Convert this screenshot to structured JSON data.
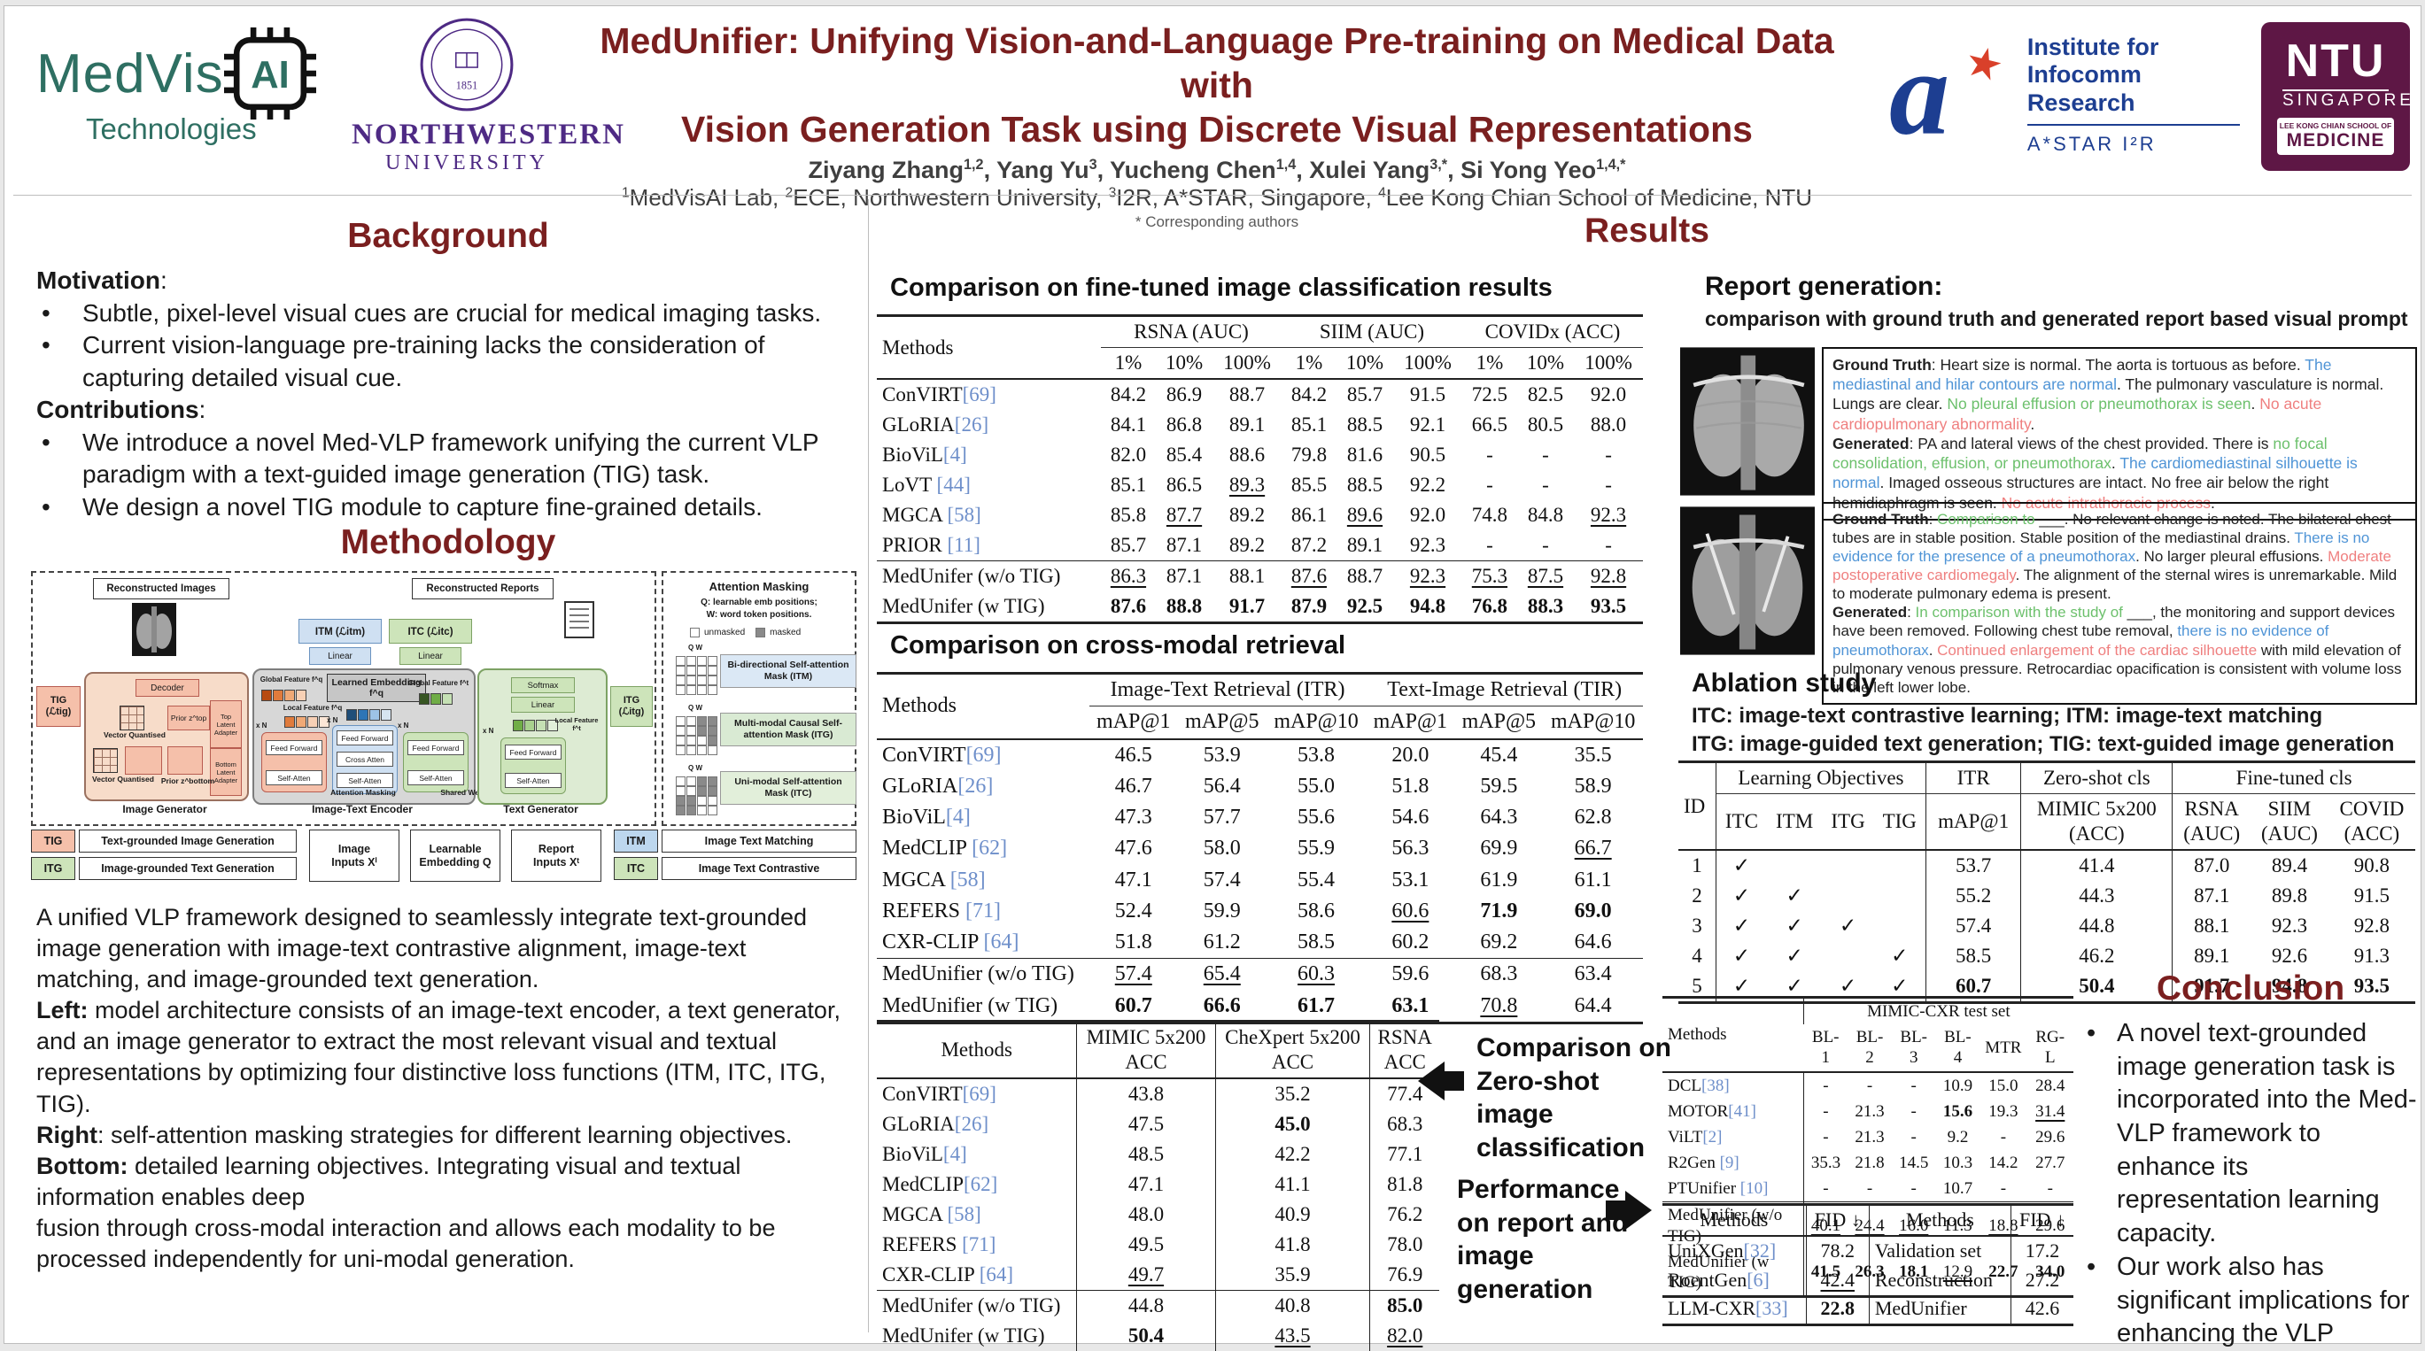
{
  "colors": {
    "blue": "#4f94d6",
    "green": "#6cc06c",
    "red": "#ef7f7f",
    "maroon": "#7a1f1f",
    "ref": "#6e8fca"
  },
  "header": {
    "title1": "MedUnifier: Unifying Vision-and-Language Pre-training on Medical Data with",
    "title2": "Vision Generation Task using Discrete Visual Representations",
    "authors": [
      {
        "t": "Ziyang Zhang"
      },
      {
        "sup": "1,2"
      },
      {
        "t": ", Yang Yu"
      },
      {
        "sup": "3"
      },
      {
        "t": ", Yucheng Chen"
      },
      {
        "sup": "1,4"
      },
      {
        "t": ", Xulei Yang"
      },
      {
        "sup": "3,*"
      },
      {
        "t": ", Si Yong Yeo"
      },
      {
        "sup": "1,4,*"
      }
    ],
    "affiliations": [
      {
        "sup": "1"
      },
      {
        "t": "MedVisAI Lab, "
      },
      {
        "sup": "2"
      },
      {
        "t": "ECE, Northwestern University, "
      },
      {
        "sup": "3"
      },
      {
        "t": "I2R, A*STAR, Singapore, "
      },
      {
        "sup": "4"
      },
      {
        "t": "Lee Kong Chian School of Medicine, NTU"
      }
    ],
    "corresponding": "* Corresponding authors",
    "logos": {
      "medvis": {
        "word": "MedVis",
        "chip": "AI",
        "tech": "Technologies"
      },
      "nw": {
        "year": "1851",
        "l1": "NORTHWESTERN",
        "l2": "UNIVERSITY"
      },
      "astar": {
        "a": "a",
        "star": "★",
        "l1": "Institute for",
        "l2": "Infocomm Research",
        "sub": "A*STAR I²R"
      },
      "ntu": {
        "l1": "NTU",
        "l2": "SINGAPORE",
        "l3": "LEE KONG CHIAN SCHOOL OF",
        "l4": "MEDICINE"
      }
    }
  },
  "background": {
    "heading": "Background",
    "motivation": [
      {
        "t": "Motivation",
        "b": 1
      },
      {
        "t": ":"
      }
    ],
    "m_items": [
      "Subtle, pixel-level visual cues are crucial for medical imaging tasks.",
      "Current vision-language pre-training lacks the consideration of capturing detailed visual cue."
    ],
    "contributions": [
      {
        "t": "Contributions",
        "b": 1
      },
      {
        "t": ":"
      }
    ],
    "c_items": [
      "We introduce a novel Med-VLP framework unifying the current VLP paradigm with a text-guided image generation (TIG) task.",
      "We design a novel TIG module to capture fine-grained details."
    ]
  },
  "methodology": {
    "heading": "Methodology",
    "diagram": {
      "rec_images": "Reconstructed Images",
      "rec_reports": "Reconstructed Reports",
      "itm": "ITM (ℒitm)",
      "itc": "ITC (ℒitc)",
      "tig": "TIG\n(ℒtig)",
      "itg": "ITG\n(ℒitg)",
      "linear": "Linear",
      "softmax": "Softmax",
      "decoder": "Decoder",
      "ff": "Feed Forward",
      "sa": "Self-Atten",
      "ca": "Cross Atten",
      "learned_emb": "Learned Embedding f^q",
      "glob_q": "Global Feature f^q",
      "loc_q": "Local Feature f^q",
      "glob_t": "Global Feature f^t",
      "loc_t": "Local Feature f^t",
      "img_gen": "Image Generator",
      "ite": "Image-Text Encoder",
      "txt_gen": "Text Generator",
      "attn_mask": "Attention Masking",
      "shared_w": "Shared Weight",
      "vq": "Vector Quantised",
      "prior_top": "Prior z^top",
      "prior_bottom": "Prior z^bottom",
      "top_adapter": "Top Latent Adapter",
      "bottom_adapter": "Bottom Latent Adapter",
      "xn": "x N",
      "panel": {
        "title": "Attention Masking",
        "q_note": "Q: learnable emb positions;",
        "w_note": "W: word token positions.",
        "unmasked": "unmasked",
        "masked": "masked",
        "qw": "Q   W",
        "itm_label": "Bi-directional Self-attention Mask (ITM)",
        "itg_label": "Multi-modal Causal Self-attention Mask (ITG)",
        "itc_label": "Uni-modal Self-attention Mask (ITC)",
        "grids": {
          "itm": [
            "wwww",
            "wwww",
            "wwww",
            "wwww"
          ],
          "itg": [
            "wwdd",
            "wwdd",
            "wwwd",
            "wwww"
          ],
          "itc": [
            "wwdd",
            "wwdd",
            "ddww",
            "ddww"
          ]
        }
      },
      "legend": {
        "tig": "TIG",
        "tig_l": "Text-grounded Image Generation",
        "itg": "ITG",
        "itg_l": "Image-grounded Text Generation",
        "itm": "ITM",
        "itm_l": "Image Text Matching",
        "itc": "ITC",
        "itc_l": "Image Text Contrastive",
        "img_in": "Image\nInputs Xⁱ",
        "emb": "Learnable\nEmbedding Q",
        "rep_in": "Report\nInputs Xᵗ"
      }
    }
  },
  "description": {
    "p1": [
      {
        "t": "A unified VLP framework designed to seamlessly integrate text-grounded image generation with image-text contrastive alignment, image-text matching, and image-grounded text generation."
      }
    ],
    "p2": [
      {
        "t": "Left:",
        "b": 1
      },
      {
        "t": " model architecture consists of an image-text encoder, a text generator, and an image generator to extract the most relevant visual and textual representations by optimizing four distinctive loss functions (ITM, ITC, ITG, TIG)."
      }
    ],
    "p3": [
      {
        "t": "Right",
        "b": 1
      },
      {
        "t": ": self-attention masking strategies for different learning objectives."
      }
    ],
    "p4": [
      {
        "t": "Bottom:",
        "b": 1
      },
      {
        "t": " detailed learning objectives. Integrating visual and textual information enables deep"
      }
    ],
    "p5": [
      {
        "t": "fusion through cross-modal interaction and allows each modality to be processed independently for uni-modal generation."
      }
    ]
  },
  "results": {
    "heading": "Results",
    "t1_title": "Comparison on fine-tuned image classification results",
    "t2_title": "Comparison on cross-modal retrieval"
  },
  "tables": {
    "finetuned": {
      "cls": "t-finetuned",
      "header": [
        [
          {
            "t": "Methods",
            "rowspan": 2
          },
          {
            "t": "RSNA (AUC)",
            "colspan": 3,
            "cls": "cmid"
          },
          {
            "t": "SIIM (AUC)",
            "colspan": 3,
            "cls": "cmid"
          },
          {
            "t": "COVIDx (ACC)",
            "colspan": 3,
            "cls": "cmid"
          }
        ],
        [
          "1%",
          "10%",
          "100%",
          "1%",
          "10%",
          "100%",
          "1%",
          "10%",
          "100%"
        ]
      ],
      "body": [
        [
          "ConVIRT[69]",
          "84.2",
          "86.9",
          "88.7",
          "84.2",
          "85.7",
          "91.5",
          "72.5",
          "82.5",
          "92.0"
        ],
        [
          "GLoRIA[26]",
          "84.1",
          "86.8",
          "89.1",
          "85.1",
          "88.5",
          "92.1",
          "66.5",
          "80.5",
          "88.0"
        ],
        [
          "BioViL[4]",
          "82.0",
          "85.4",
          "88.6",
          "79.8",
          "81.6",
          "90.5",
          "-",
          "-",
          "-"
        ],
        [
          "LoVT [44]",
          "85.1",
          "86.5",
          "__89.3__",
          "85.5",
          "88.5",
          "92.2",
          "-",
          "-",
          "-"
        ],
        [
          "MGCA [58]",
          "85.8",
          "__87.7__",
          "89.2",
          "86.1",
          "__89.6__",
          "92.0",
          "74.8",
          "84.8",
          "__92.3__"
        ],
        [
          "PRIOR [11]",
          "85.7",
          "87.1",
          "89.2",
          "87.2",
          "89.1",
          "92.3",
          "-",
          "-",
          "-"
        ]
      ],
      "footer": [
        [
          "MedUnifer (w/o TIG)",
          "__86.3__",
          "87.1",
          "88.1",
          "__87.6__",
          "88.7",
          "__92.3__",
          "__75.3__",
          "__87.5__",
          "__92.8__"
        ],
        [
          "MedUnifer (w TIG)",
          "**87.6**",
          "**88.8**",
          "**91.7**",
          "**87.9**",
          "**92.5**",
          "**94.8**",
          "**76.8**",
          "**88.3**",
          "**93.5**"
        ]
      ]
    },
    "retrieval": {
      "cls": "t-retrieval",
      "header": [
        [
          {
            "t": "Methods",
            "rowspan": 2
          },
          {
            "t": "Image-Text Retrieval (ITR)",
            "colspan": 3,
            "cls": "cmid"
          },
          {
            "t": "Text-Image Retrieval (TIR)",
            "colspan": 3,
            "cls": "cmid"
          }
        ],
        [
          "mAP@1",
          "mAP@5",
          "mAP@10",
          "mAP@1",
          "mAP@5",
          "mAP@10"
        ]
      ],
      "body": [
        [
          "ConVIRT[69]",
          "46.5",
          "53.9",
          "53.8",
          "20.0",
          "45.4",
          "35.5"
        ],
        [
          "GLoRIA[26]",
          "46.7",
          "56.4",
          "55.0",
          "51.8",
          "59.5",
          "58.9"
        ],
        [
          "BioViL[4]",
          "47.3",
          "57.7",
          "55.6",
          "54.6",
          "64.3",
          "62.8"
        ],
        [
          "MedCLIP [62]",
          "47.6",
          "58.0",
          "55.9",
          "56.3",
          "69.9",
          "__66.7__"
        ],
        [
          "MGCA [58]",
          "47.1",
          "57.4",
          "55.4",
          "53.1",
          "61.9",
          "61.1"
        ],
        [
          "REFERS [71]",
          "52.4",
          "59.9",
          "58.6",
          "__60.6__",
          "**71.9**",
          "**69.0**"
        ],
        [
          "CXR-CLIP [64]",
          "51.8",
          "61.2",
          "58.5",
          "60.2",
          "69.2",
          "64.6"
        ]
      ],
      "footer": [
        [
          "MedUnifier (w/o TIG)",
          "__57.4__",
          "__65.4__",
          "__60.3__",
          "59.6",
          "68.3",
          "63.4"
        ],
        [
          "MedUnifier (w TIG)",
          "**60.7**",
          "**66.6**",
          "**61.7**",
          "**63.1**",
          "__70.8__",
          "64.4"
        ]
      ]
    },
    "zeroshot": {
      "cls": "t-zeroshot",
      "header": [
        [
          {
            "t": "Methods"
          },
          {
            "t": "MIMIC 5x200\nACC",
            "cls": "vl"
          },
          {
            "t": "CheXpert 5x200\nACC",
            "cls": "vl"
          },
          {
            "t": "RSNA\nACC",
            "cls": "vl"
          }
        ]
      ],
      "body": [
        [
          "ConVIRT[69]",
          "43.8",
          "35.2",
          "77.4"
        ],
        [
          "GLoRIA[26]",
          "47.5",
          "**45.0**",
          "68.3"
        ],
        [
          "BioViL[4]",
          "48.5",
          "42.2",
          "77.1"
        ],
        [
          "MedCLIP[62]",
          "47.1",
          "41.1",
          "81.8"
        ],
        [
          "MGCA [58]",
          "48.0",
          "40.9",
          "76.2"
        ],
        [
          "REFERS [71]",
          "49.5",
          "41.8",
          "78.0"
        ],
        [
          "CXR-CLIP [64]",
          "__49.7__",
          "35.9",
          "76.9"
        ]
      ],
      "footer": [
        [
          "MedUnifer (w/o TIG)",
          "44.8",
          "40.8",
          "**85.0**"
        ],
        [
          "MedUnifer (w TIG)",
          "**50.4**",
          "__43.5__",
          "__82.0__"
        ]
      ]
    },
    "ablation": {
      "cls": "t-ablation",
      "header": [
        [
          {
            "t": "ID",
            "rowspan": 2
          },
          {
            "t": "Learning Objectives",
            "colspan": 4,
            "cls": "vl cmid"
          },
          {
            "t": "ITR",
            "cls": "vl cmid"
          },
          {
            "t": "Zero-shot cls",
            "cls": "vl cmid"
          },
          {
            "t": "Fine-tuned cls",
            "colspan": 3,
            "cls": "vl cmid"
          }
        ],
        [
          {
            "t": "ITC",
            "cls": "vl"
          },
          {
            "t": "ITM"
          },
          {
            "t": "ITG"
          },
          {
            "t": "TIG"
          },
          {
            "t": "mAP@1",
            "cls": "vl"
          },
          {
            "t": "MIMIC 5x200\n(ACC)",
            "cls": "vl"
          },
          {
            "t": "RSNA\n(AUC)",
            "cls": "vl"
          },
          {
            "t": "SIIM\n(AUC)"
          },
          {
            "t": "COVID\n(ACC)"
          }
        ]
      ],
      "body": [
        [
          "1",
          "✓",
          "",
          "",
          "",
          "53.7",
          "41.4",
          "87.0",
          "89.4",
          "90.8"
        ],
        [
          "2",
          "✓",
          "✓",
          "",
          "",
          "55.2",
          "44.3",
          "87.1",
          "89.8",
          "91.5"
        ],
        [
          "3",
          "✓",
          "✓",
          "✓",
          "",
          "57.4",
          "44.8",
          "88.1",
          "92.3",
          "92.8"
        ],
        [
          "4",
          "✓",
          "✓",
          "",
          "✓",
          "58.5",
          "46.2",
          "89.1",
          "92.6",
          "91.3"
        ],
        [
          "5",
          "✓",
          "✓",
          "✓",
          "✓",
          "**60.7**",
          "**50.4**",
          "**91.7**",
          "**94.8**",
          "**93.5**"
        ]
      ]
    },
    "mimic": {
      "cls": "t-mimic",
      "header": [
        [
          {
            "t": "Methods",
            "rowspan": 2
          },
          {
            "t": "MIMIC-CXR test set",
            "colspan": 6,
            "cls": "vl"
          }
        ],
        [
          "BL-1",
          "BL-2",
          "BL-3",
          "BL-4",
          "MTR",
          "RG-L"
        ]
      ],
      "body": [
        [
          "DCL[38]",
          "-",
          "-",
          "-",
          "10.9",
          "15.0",
          "28.4"
        ],
        [
          "MOTOR[41]",
          "-",
          "21.3",
          "-",
          "**15.6**",
          "19.3",
          "__31.4__"
        ],
        [
          "ViLT[2]",
          "-",
          "21.3",
          "-",
          "9.2",
          "-",
          "29.6"
        ],
        [
          "R2Gen [9]",
          "35.3",
          "21.8",
          "14.5",
          "10.3",
          "14.2",
          "27.7"
        ],
        [
          "PTUnifier [10]",
          "-",
          "-",
          "-",
          "10.7",
          "-",
          "-"
        ]
      ],
      "footer": [
        [
          "MedUnifier (w/o TIG)",
          "__40.1__",
          "__24.4__",
          "__16.0__",
          "11.3",
          "__18.8__",
          "29.6"
        ],
        [
          "MedUnifier (w TIG)",
          "**41.5**",
          "**26.3**",
          "**18.1**",
          "__12.9__",
          "**22.7**",
          "**34.0**"
        ]
      ]
    },
    "fid": {
      "cls": "t-fid",
      "header": [
        [
          {
            "t": "Methods"
          },
          {
            "t": "FID ↓",
            "cls": "vl"
          },
          {
            "t": "Methods",
            "cls": "vl"
          },
          {
            "t": "FID ↓",
            "cls": "vl"
          }
        ]
      ],
      "body": [
        [
          "UniXGen[32]",
          "78.2",
          "Validation set",
          "17.2"
        ],
        [
          "RoentGen[6]",
          "__42.4__",
          "Reconstruction",
          "27.2"
        ],
        [
          "LLM-CXR[33]",
          "**22.8**",
          "MedUnifier",
          "42.6"
        ]
      ]
    }
  },
  "report": {
    "heading": "Report generation:",
    "sub": "comparison with ground truth and generated report based visual prompt",
    "box1_gt": [
      {
        "t": "Ground Truth",
        "b": 1
      },
      {
        "t": ": Heart size is normal. The aorta is tortuous as before. "
      },
      {
        "t": "The mediastinal and hilar contours are normal",
        "c": "blue"
      },
      {
        "t": ". The pulmonary vasculature is normal. Lungs are clear. "
      },
      {
        "t": "No pleural effusion or pneumothorax is seen",
        "c": "green"
      },
      {
        "t": ". "
      },
      {
        "t": "No acute cardiopulmonary abnormality",
        "c": "red"
      },
      {
        "t": "."
      }
    ],
    "box1_gen": [
      {
        "t": "Generated",
        "b": 1
      },
      {
        "t": ": PA and lateral views of the chest provided. There is "
      },
      {
        "t": "no focal consolidation, effusion, or pneumothorax",
        "c": "green"
      },
      {
        "t": ". "
      },
      {
        "t": "The cardiomediastinal silhouette is normal",
        "c": "blue"
      },
      {
        "t": ". Imaged osseous structures are intact. No free air below the right hemidiaphragm is seen. "
      },
      {
        "t": "No acute intrathoracic process",
        "c": "red"
      },
      {
        "t": "."
      }
    ],
    "box2_gt": [
      {
        "t": "Ground Truth",
        "b": 1
      },
      {
        "t": ": "
      },
      {
        "t": "Comparison to",
        "c": "green"
      },
      {
        "t": " ___. No relevant change is noted. The bilateral chest tubes are in stable position. Stable position of the mediastinal drains. "
      },
      {
        "t": "There is no evidence for the presence of a pneumothorax",
        "c": "blue"
      },
      {
        "t": ". No larger pleural effusions. "
      },
      {
        "t": "Moderate postoperative cardiomegaly",
        "c": "red"
      },
      {
        "t": ". The alignment of the sternal wires is unremarkable. Mild to moderate pulmonary edema is present."
      }
    ],
    "box2_gen": [
      {
        "t": "Generated",
        "b": 1
      },
      {
        "t": ": "
      },
      {
        "t": "In comparison with the study of",
        "c": "green"
      },
      {
        "t": " ___, the monitoring and support devices have been removed. Following chest tube removal, "
      },
      {
        "t": "there is no evidence of pneumothorax",
        "c": "blue"
      },
      {
        "t": ". "
      },
      {
        "t": "Continued enlargement of the cardiac silhouette",
        "c": "red"
      },
      {
        "t": " with mild elevation of pulmonary venous pressure. Retrocardiac opacification is consistent with volume loss in the left lower lobe."
      }
    ]
  },
  "ablation_sec": {
    "heading": "Ablation study",
    "note1": "ITC: image-text contrastive learning; ITM: image-text matching",
    "note2": "ITG: image-guided text generation; TIG: text-guided image generation"
  },
  "annotations": {
    "zero_shot": "Comparison on Zero-shot image classification",
    "generation": "Performance on report and image generation"
  },
  "conclusion": {
    "heading": "Conclusion",
    "items": [
      "A novel text-grounded image generation task is incorporated into the Med-VLP framework to enhance its representation learning capacity.",
      "Our work also has significant implications for enhancing the VLP development for radiological applications."
    ]
  }
}
